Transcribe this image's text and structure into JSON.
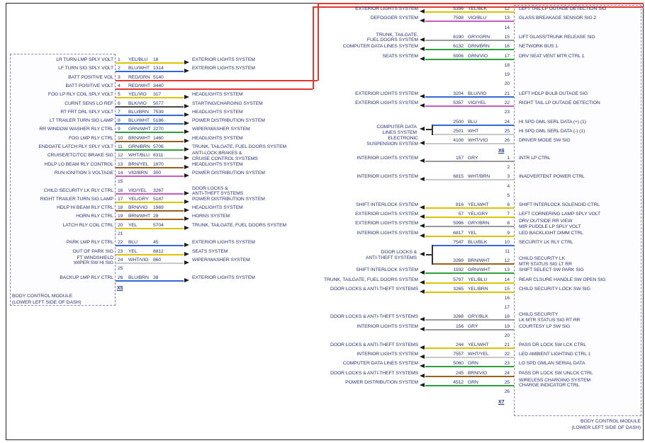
{
  "palette": {
    "YEL": "#ddc400",
    "BLU": "#3468d8",
    "RED": "#e03a30",
    "BLK": "#4a4a4a",
    "GRN": "#2f9e3c",
    "BRN": "#96601e",
    "VIO": "#cc59c4",
    "WHT": "#c9c9c9",
    "GRY": "#9a9a9a"
  },
  "text_color": "#27337a",
  "left_module": {
    "name": "BODY CONTROL MODULE",
    "location": "(LOWER LEFT SIDE OF DASH)",
    "connector": "X5",
    "pins": [
      {
        "pin": 1,
        "label": "LR TURN LMP SPLY VOLT",
        "circuit": "18",
        "color": "YEL/BLU",
        "system": "EXTERIOR LIGHTS SYSTEM"
      },
      {
        "pin": 2,
        "label": "LF TURN SIG SPLY VOLT",
        "circuit": "1314",
        "color": "BLU/WHT",
        "system": "EXTERIOR LIGHTS SYSTEM"
      },
      {
        "pin": 3,
        "label": "BATT POSITIVE VOL",
        "circuit": "5140",
        "color": "RED/GRN",
        "system": "",
        "route": "top"
      },
      {
        "pin": 4,
        "label": "BATT POSITIVE VOLT",
        "circuit": "3440",
        "color": "RED/WHT",
        "system": "",
        "route": "top"
      },
      {
        "pin": 5,
        "label": "FOG LP RLY COIL SPLY VOLT",
        "circuit": "317",
        "color": "YEL/VIO",
        "system": "HEADLIGHTS SYSTEM"
      },
      {
        "pin": 6,
        "label": "CURNT SENS LO REF",
        "circuit": "5077",
        "color": "BLK/VIO",
        "system": "STARTING/CHARGING SYSTEM"
      },
      {
        "pin": 7,
        "label": "RT FRT DRL SPLY VOLT",
        "circuit": "7539",
        "color": "BLU/BRN",
        "system": "HEADLIGHTS SYSTEM"
      },
      {
        "pin": 8,
        "label": "LT TRAILER TURN SIG LAMP",
        "circuit": "5186",
        "color": "BLU/WHT",
        "system": "POWER DISTRIBUTION SYSTEM"
      },
      {
        "pin": 9,
        "label": "RR WINDOW WASHER RLY CTRL",
        "circuit": "2270",
        "color": "GRN/WHT",
        "system": "WIPER/WASHER SYSTEM"
      },
      {
        "pin": 10,
        "label": "FOG LMP RLY CTRL",
        "circuit": "1460",
        "color": "BRN/WHT",
        "system": "HEADLIGHTS SYSTEM"
      },
      {
        "pin": 11,
        "label": "ENDGATE LATCH RLY SPLY VOLT",
        "circuit": "5706",
        "color": "GRN/BRN",
        "system": "TRUNK, TAILGATE, FUEL DOORS SYSTEM"
      },
      {
        "pin": 12,
        "label": "CRUISE/ETC/TCC BRAKE SIG",
        "circuit": "6311",
        "color": "WHT/BLU",
        "system": "ANTI-LOCK BRAKES &\nCRUISE CONTROL SYSTEMS"
      },
      {
        "pin": 13,
        "label": "HDLP LO BEAM RLY CONTROL",
        "circuit": "1970",
        "color": "BRN/YEL",
        "system": "HEADLIGHTS SYSTEM"
      },
      {
        "pin": 14,
        "label": "RUN IGNITION 3 VOLTAGE",
        "circuit": "300",
        "color": "VIO/BRN",
        "system": "POWER DISTRIBUTION SYSTEM"
      },
      {
        "pin": 15
      },
      {
        "pin": 16,
        "label": "CHILD SECURITY LK RLY CTRL",
        "circuit": "3267",
        "color": "VIO/YEL",
        "system": "DOOR LOCKS &\nANTI-THEFT SYSTEMS"
      },
      {
        "pin": 17,
        "label": "RIGHT TRAILER TURN SIG LAMP",
        "circuit": "5187",
        "color": "YEL/GRY",
        "system": "POWER DISTRIBUTION SYSTEM"
      },
      {
        "pin": 18,
        "label": "HDLP HI BEAM RLY CTRL",
        "circuit": "1969",
        "color": "BRN/VIO",
        "system": "HEADLIGHTS SYSTEM"
      },
      {
        "pin": 19,
        "label": "HORN RLY CTRL",
        "circuit": "28",
        "color": "BRN/WHT",
        "system": "HORNS SYSTEM"
      },
      {
        "pin": 20,
        "label": "LATCH RLY COIL CTRL",
        "circuit": "5704",
        "color": "YEL",
        "system": "TRUNK, TAILGATE, FUEL DOORS SYSTEM"
      },
      {
        "pin": 21
      },
      {
        "pin": 22,
        "label": "PARK LMP RLY CTRL",
        "circuit": "45",
        "color": "BLU",
        "system": "EXTERIOR LIGHTS SYSTEM"
      },
      {
        "pin": 23,
        "label": "OUT OF PARK SIG",
        "circuit": "6812",
        "color": "YEL",
        "system": "SEATS SYSTEM"
      },
      {
        "pin": 24,
        "label": "FT WINDSHIELD\nWIPER SW HI SIG",
        "circuit": "860",
        "color": "WHT/VIO",
        "system": "WIPER/WASHER SYSTEM"
      },
      {
        "pin": 25
      },
      {
        "pin": 26,
        "label": "BACKUP LMP RLY CTRL",
        "circuit": "38",
        "color": "BLU/BRN",
        "system": "EXTERIOR LIGHTS SYSTEM"
      }
    ]
  },
  "right_module": {
    "name": "BODY CONTROL MODULE",
    "location": "(LOWER LEFT SIDE OF DASH)",
    "connectors": [
      {
        "connector": "X6",
        "first_pin": 12,
        "pins": [
          {
            "pin": 12,
            "system": "EXTERIOR LIGHTS SYSTEM",
            "circuit": "5356",
            "color": "YEL/BLK",
            "label": "LEFT TAIL LP OUTAGE DETECTION SIG"
          },
          {
            "pin": 13,
            "system": "DEFOGGER SYSTEM",
            "circuit": "7598",
            "color": "VIO/BLU",
            "label": "GLASS BREAKAGE SENSOR SIG 2"
          },
          {
            "pin": 14
          },
          {
            "pin": 15,
            "system": "TRUNK, TAILGATE,\nFUEL DOORS SYSTEM",
            "circuit": "6190",
            "color": "GRY/GRN",
            "label": "LIFT GLASS/TRUNK RELEASE SIG"
          },
          {
            "pin": 16,
            "system": "COMPUTER DATA LINES SYSTEM",
            "circuit": "6132",
            "color": "GRN/BRN",
            "label": "NETWORK BUS 1"
          },
          {
            "pin": 17,
            "system": "SEATS SYSTEM",
            "circuit": "5906",
            "color": "GRN/VIO",
            "label": "DRV SEAT VENT MTR CTRL 1"
          },
          {
            "pin": 18
          },
          {
            "pin": 19
          },
          {
            "pin": 20
          },
          {
            "pin": 21,
            "system": "EXTERIOR LIGHTS SYSTEM",
            "circuit": "3204",
            "color": "BLU/VIO",
            "label": "LEFT HDLP BULB OUTAGE SIG"
          },
          {
            "pin": 22,
            "system": "EXTERIOR LIGHTS SYSTEM",
            "circuit": "5357",
            "color": "VIO/YEL",
            "label": "RIGHT TAIL LP OUTAGE DETECTION"
          },
          {
            "pin": 23
          },
          {
            "pin": 24,
            "circuit": "2500",
            "color": "BLU",
            "label": "HI SPD GML SERL DATA (+) (1)",
            "group": "g1"
          },
          {
            "pin": 25,
            "circuit": "2501",
            "color": "WHT",
            "label": "HI SPD GML SERL DATA (-) (1)",
            "group": "g1"
          },
          {
            "pin": 26,
            "system": "ELECTRONIC\nSUSPENSION SYSTEM",
            "circuit": "4108",
            "color": "WHT/VIO",
            "label": "DRIVER MODE SW SIG"
          }
        ],
        "groups": [
          {
            "id": "g1",
            "pins": [
              24,
              25
            ],
            "system": "COMPUTER DATA\nLINES SYSTEM"
          }
        ]
      },
      {
        "connector": "X7",
        "first_pin": 1,
        "pins": [
          {
            "pin": 1,
            "system": "INTERIOR LIGHTS SYSTEM",
            "circuit": "157",
            "color": "GRY",
            "label": "INTR LP CTRL"
          },
          {
            "pin": 2
          },
          {
            "pin": 3,
            "system": "INTERIOR LIGHTS SYSTEM",
            "circuit": "6815",
            "color": "WHT/BRN",
            "label": "INADVERTENT POWER CTRL"
          },
          {
            "pin": 4
          },
          {
            "pin": 5
          },
          {
            "pin": 6,
            "system": "SHIFT INTERLOCK SYSTEM",
            "circuit": "816",
            "color": "YEL/WHT",
            "label": "SHIFT INTERLOCK SOLENOID CTRL"
          },
          {
            "pin": 7,
            "system": "EXTERIOR LIGHTS SYSTEM",
            "circuit": "57",
            "color": "YEL/GRY",
            "label": "LEFT CORNERING LAMP SPLY VOLT"
          },
          {
            "pin": 8,
            "system": "EXTERIOR LIGHTS SYSTEM",
            "circuit": "5996",
            "color": "GRY/BRN",
            "label": "DRV OUTSIDE RR VIEW\nMIR PUDDLE LP SPLY VOLT"
          },
          {
            "pin": 9,
            "system": "INTERIOR LIGHTS SYSTEM",
            "circuit": "6817",
            "color": "YEL",
            "label": "LED BACKLIGHT DIMM CTRL"
          },
          {
            "pin": 10,
            "circuit": "7547",
            "color": "BLU/BLK",
            "label": "SECURITY LK RLY CTRL",
            "group": "g2"
          },
          {
            "pin": 11
          },
          {
            "pin": 12,
            "circuit": "3269",
            "color": "BRN/WHT",
            "label": "CHILD SECURITY LK\nMTR STATUS SIG LT RR",
            "group": "g2"
          },
          {
            "pin": 13,
            "system": "SHIFT INTERLOCK SYSTEM",
            "circuit": "1932",
            "color": "GRN/WHT",
            "label": "SHIFT SELECT SW PARK SIG"
          },
          {
            "pin": 14,
            "system": "TRUNK, TAILGATE, FUEL DOORS SYSTEM",
            "circuit": "5797",
            "color": "YEL/BLU",
            "label": "REAR CLSURE HANDLE SW OPEN SIG"
          },
          {
            "pin": 15,
            "system": "DOOR LOCKS & ANTI-THEFT SYSTEMS",
            "circuit": "3265",
            "color": "YEL/BRN",
            "label": "CHILD SECURITY LOCK SW SIG"
          },
          {
            "pin": 16
          },
          {
            "pin": 17
          },
          {
            "pin": 18,
            "system": "DOOR LOCKS & ANTI-THEFT SYSTEMS",
            "circuit": "3268",
            "color": "GRY/BLK",
            "label": "CHILD SECURITY\nLK MTR STATUS SIG RT RR"
          },
          {
            "pin": 19,
            "system": "INTERIOR LIGHTS SYSTEM",
            "circuit": "156",
            "color": "GRY",
            "label": "COURTESY LP SW SIG"
          },
          {
            "pin": 20
          },
          {
            "pin": 21,
            "system": "DOOR LOCKS & ANTI-THEFT SYSTEMS",
            "circuit": "244",
            "color": "YEL/WHT",
            "label": "PASS DR LOCK SW LCK CTRL"
          },
          {
            "pin": 22,
            "system": "INTERIOR LIGHTS SYSTEM",
            "circuit": "7557",
            "color": "WHT/YEL",
            "label": "LED AMBIENT LIGHTING CTRL 1"
          },
          {
            "pin": 23,
            "system": "COMPUTER DATA LINES SYSTEM",
            "circuit": "5060",
            "color": "GRN",
            "label": "LO SPD GMLAN SERIAL DATA"
          },
          {
            "pin": 24,
            "system": "DOOR LOCKS & ANTI-THEFT SYSTEMS",
            "circuit": "245",
            "color": "BRN/VIO",
            "label": "PASS DR LOCK SW UNLCK CTRL"
          },
          {
            "pin": 25,
            "system": "POWER DISTRIBUTION SYSTEM",
            "circuit": "4512",
            "color": "GRN",
            "label": "WIRELESS CHARGING SYSTEM\nCHARGE INDICATOR CTRL"
          },
          {
            "pin": 26
          }
        ],
        "groups": [
          {
            "id": "g2",
            "pins": [
              10,
              12
            ],
            "system": "DOOR LOCKS &\nANTI-THEFT SYSTEMS"
          }
        ]
      }
    ]
  }
}
